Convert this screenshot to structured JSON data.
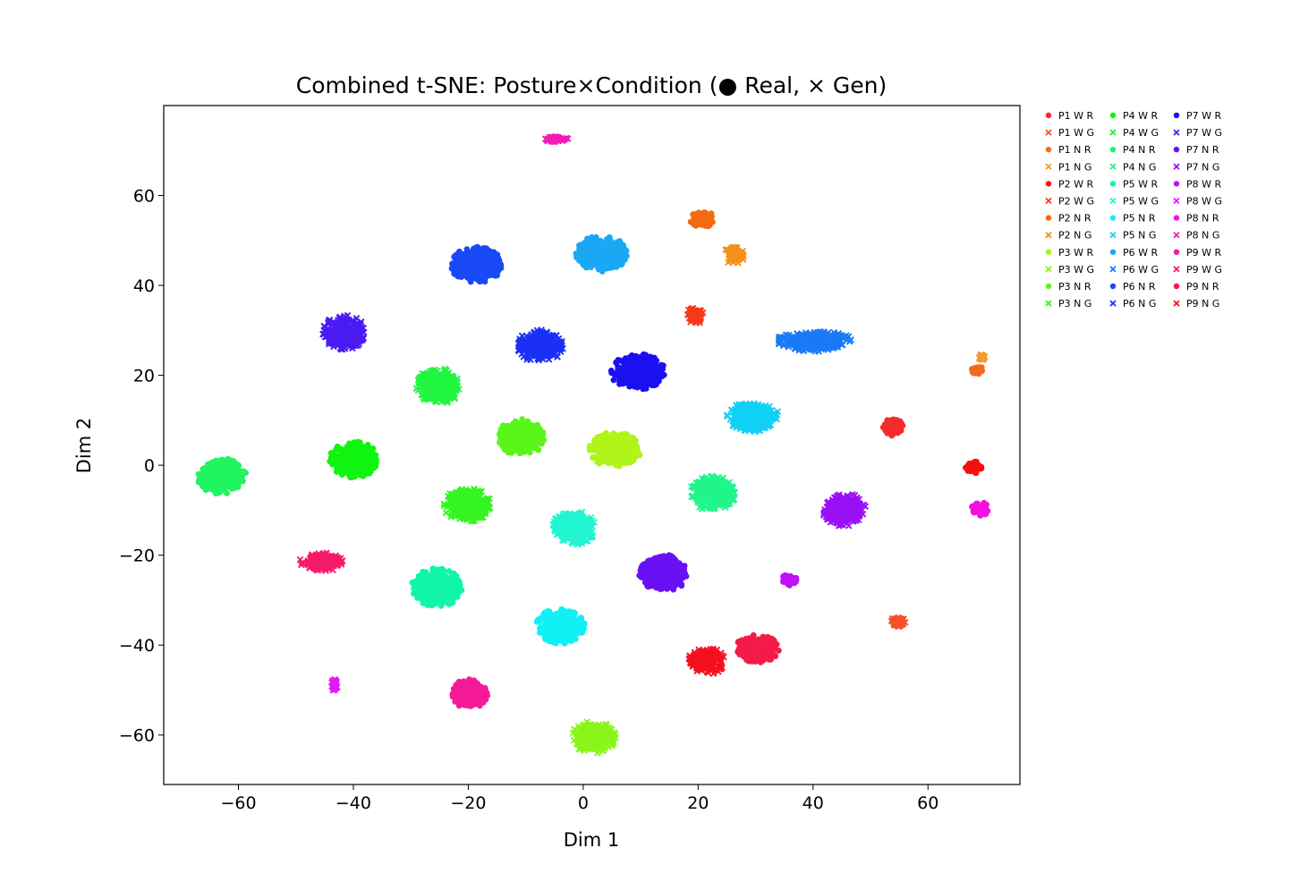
{
  "chart_data": {
    "type": "scatter",
    "title": "Combined t-SNE: Posture×Condition (● Real, × Gen)",
    "xlabel": "Dim 1",
    "ylabel": "Dim 2",
    "xlim": [
      -73,
      76
    ],
    "ylim": [
      -71,
      80
    ],
    "xticks": [
      -60,
      -40,
      -20,
      0,
      20,
      40,
      60
    ],
    "yticks": [
      -60,
      -40,
      -20,
      0,
      20,
      40,
      60
    ],
    "xtick_labels": [
      "−60",
      "−40",
      "−20",
      "0",
      "20",
      "40",
      "60"
    ],
    "ytick_labels": [
      "−60",
      "−40",
      "−20",
      "0",
      "20",
      "40",
      "60"
    ],
    "grid": false,
    "legend": {
      "placement": "outside-right",
      "columns": 3
    },
    "series": [
      {
        "name": "P1 W R",
        "marker": "dot",
        "color": "#f52a2a",
        "cluster": {
          "cx": 54,
          "cy": 8.5,
          "rx": 1.8,
          "ry": 2.0
        }
      },
      {
        "name": "P1 W G",
        "marker": "cross",
        "color": "#f5502a",
        "cluster": {
          "cx": 54.8,
          "cy": -34.8,
          "rx": 1.3,
          "ry": 1.3
        }
      },
      {
        "name": "P1 N R",
        "marker": "dot",
        "color": "#f56a1e",
        "cluster": {
          "cx": 68.5,
          "cy": 21.2,
          "rx": 1.0,
          "ry": 1.1
        }
      },
      {
        "name": "P1 N G",
        "marker": "cross",
        "color": "#f59a2a",
        "cluster": {
          "cx": 69.4,
          "cy": 24,
          "rx": 0.5,
          "ry": 0.6
        }
      },
      {
        "name": "P2 W R",
        "marker": "dot",
        "color": "#f51010",
        "cluster": {
          "cx": 68,
          "cy": -0.5,
          "rx": 1.4,
          "ry": 1.3
        }
      },
      {
        "name": "P2 W G",
        "marker": "cross",
        "color": "#f53a1a",
        "cluster": {
          "cx": 19.5,
          "cy": 33.2,
          "rx": 1.7,
          "ry": 1.8
        }
      },
      {
        "name": "P2 N R",
        "marker": "dot",
        "color": "#f56a10",
        "cluster": {
          "cx": 20.8,
          "cy": 54.8,
          "rx": 2.2,
          "ry": 1.8
        }
      },
      {
        "name": "P2 N G",
        "marker": "cross",
        "color": "#f5901a",
        "cluster": {
          "cx": 26.3,
          "cy": 46.8,
          "rx": 1.8,
          "ry": 2.0
        }
      },
      {
        "name": "P3 W R",
        "marker": "dot",
        "color": "#b0f51a",
        "cluster": {
          "cx": 5.5,
          "cy": 3.5,
          "rx": 4.5,
          "ry": 3.8
        }
      },
      {
        "name": "P3 W G",
        "marker": "cross",
        "color": "#8af51a",
        "cluster": {
          "cx": 1.8,
          "cy": -60.5,
          "rx": 3.8,
          "ry": 3.6
        }
      },
      {
        "name": "P3 N R",
        "marker": "dot",
        "color": "#5af51a",
        "cluster": {
          "cx": -10.8,
          "cy": 6.2,
          "rx": 4.0,
          "ry": 4.0
        }
      },
      {
        "name": "P3 N G",
        "marker": "cross",
        "color": "#34f520",
        "cluster": {
          "cx": -20.2,
          "cy": -8.8,
          "rx": 4.0,
          "ry": 3.8
        }
      },
      {
        "name": "P4 W R",
        "marker": "dot",
        "color": "#10f510",
        "cluster": {
          "cx": -39.8,
          "cy": 1.2,
          "rx": 4.3,
          "ry": 4.0
        }
      },
      {
        "name": "P4 W G",
        "marker": "cross",
        "color": "#20f540",
        "cluster": {
          "cx": -25.2,
          "cy": 17.6,
          "rx": 3.8,
          "ry": 4.0
        }
      },
      {
        "name": "P4 N R",
        "marker": "dot",
        "color": "#20f560",
        "cluster": {
          "cx": -62.8,
          "cy": -2.6,
          "rx": 4.3,
          "ry": 4.0
        }
      },
      {
        "name": "P4 N G",
        "marker": "cross",
        "color": "#20f58a",
        "cluster": {
          "cx": 22.5,
          "cy": -6.2,
          "rx": 4.0,
          "ry": 3.8
        }
      },
      {
        "name": "P5 W R",
        "marker": "dot",
        "color": "#10f5a8",
        "cluster": {
          "cx": -25.5,
          "cy": -27.2,
          "rx": 4.3,
          "ry": 4.2
        }
      },
      {
        "name": "P5 W G",
        "marker": "cross",
        "color": "#20f5d0",
        "cluster": {
          "cx": -1.6,
          "cy": -13.8,
          "rx": 3.8,
          "ry": 3.8
        }
      },
      {
        "name": "P5 N R",
        "marker": "dot",
        "color": "#10f0f5",
        "cluster": {
          "cx": -4,
          "cy": -35.8,
          "rx": 4.2,
          "ry": 3.8
        }
      },
      {
        "name": "P5 N G",
        "marker": "cross",
        "color": "#10d0f5",
        "cluster": {
          "cx": 29.5,
          "cy": 10.8,
          "rx": 4.5,
          "ry": 3.3
        }
      },
      {
        "name": "P6 W R",
        "marker": "dot",
        "color": "#1aa8f5",
        "cluster": {
          "cx": 3.2,
          "cy": 47.2,
          "rx": 4.5,
          "ry": 4.0
        }
      },
      {
        "name": "P6 W G",
        "marker": "cross",
        "color": "#1a7af5",
        "cluster": {
          "cx": 40,
          "cy": 27.5,
          "rx": 6.5,
          "ry": 2.2
        }
      },
      {
        "name": "P6 N R",
        "marker": "dot",
        "color": "#1a4af5",
        "cluster": {
          "cx": -18.5,
          "cy": 44.5,
          "rx": 4.5,
          "ry": 4.0
        }
      },
      {
        "name": "P6 N G",
        "marker": "cross",
        "color": "#1a30f5",
        "cluster": {
          "cx": -7.5,
          "cy": 26.5,
          "rx": 4.0,
          "ry": 3.5
        }
      },
      {
        "name": "P7 W R",
        "marker": "dot",
        "color": "#1a10f0",
        "cluster": {
          "cx": 9.5,
          "cy": 20.8,
          "rx": 4.6,
          "ry": 4.0
        }
      },
      {
        "name": "P7 W G",
        "marker": "cross",
        "color": "#4a1af5",
        "cluster": {
          "cx": -41.5,
          "cy": 29.5,
          "rx": 3.8,
          "ry": 3.8
        }
      },
      {
        "name": "P7 N R",
        "marker": "dot",
        "color": "#6a10f5",
        "cluster": {
          "cx": 14,
          "cy": -24,
          "rx": 4.2,
          "ry": 4.0
        }
      },
      {
        "name": "P7 N G",
        "marker": "cross",
        "color": "#9a10f5",
        "cluster": {
          "cx": 45.5,
          "cy": -10,
          "rx": 3.8,
          "ry": 3.8
        }
      },
      {
        "name": "P8 W R",
        "marker": "dot",
        "color": "#c010f5",
        "cluster": {
          "cx": 35.8,
          "cy": -25.5,
          "rx": 1.4,
          "ry": 1.3
        }
      },
      {
        "name": "P8 W G",
        "marker": "cross",
        "color": "#e01af5",
        "cluster": {
          "cx": -43.3,
          "cy": -48.8,
          "rx": 0.5,
          "ry": 1.3
        }
      },
      {
        "name": "P8 N R",
        "marker": "dot",
        "color": "#f510e0",
        "cluster": {
          "cx": 69,
          "cy": -9.8,
          "rx": 1.6,
          "ry": 1.6
        }
      },
      {
        "name": "P8 N G",
        "marker": "cross",
        "color": "#f51ab4",
        "cluster": {
          "cx": -4.8,
          "cy": 72.5,
          "rx": 2.2,
          "ry": 0.6
        }
      },
      {
        "name": "P9 W R",
        "marker": "dot",
        "color": "#f51a9a",
        "cluster": {
          "cx": -19.8,
          "cy": -50.8,
          "rx": 3.2,
          "ry": 3.2
        }
      },
      {
        "name": "P9 W G",
        "marker": "cross",
        "color": "#f51a6a",
        "cluster": {
          "cx": -45.5,
          "cy": -21.5,
          "rx": 3.8,
          "ry": 2.0
        }
      },
      {
        "name": "P9 N R",
        "marker": "dot",
        "color": "#f51a4a",
        "cluster": {
          "cx": 30.2,
          "cy": -40.8,
          "rx": 3.8,
          "ry": 3.0
        }
      },
      {
        "name": "P9 N G",
        "marker": "cross",
        "color": "#f51020",
        "cluster": {
          "cx": 21.5,
          "cy": -43.5,
          "rx": 3.2,
          "ry": 3.0
        }
      }
    ]
  }
}
